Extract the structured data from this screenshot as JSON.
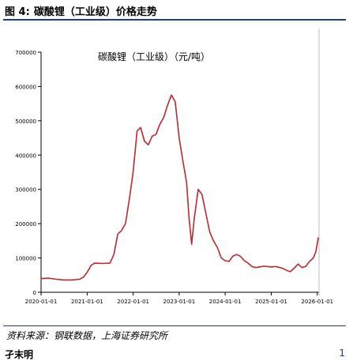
{
  "figure": {
    "label": "图 4:",
    "caption": "碳酸锂（工业级）价格走势"
  },
  "source_note": "资料来源：钢联数据，上海证券研究所",
  "footer_text": "孑末明",
  "footer_mark": "1",
  "colors": {
    "line": "#c0272d",
    "rule": "#1f3f73",
    "axis": "#000000"
  },
  "chart_data": {
    "type": "line",
    "title": "碳酸锂（工业级）（元/吨）",
    "xlabel": "",
    "ylabel": "",
    "x_ticks": [
      "2020-01-01",
      "2021-01-01",
      "2022-01-01",
      "2023-01-01",
      "2024-01-01",
      "2025-01-01",
      "2026-01-01"
    ],
    "y_ticks": [
      "0",
      "100000",
      "200000",
      "300000",
      "400000",
      "500000",
      "600000",
      "700000"
    ],
    "ylim": [
      0,
      700000
    ],
    "xlim": [
      "2020-01-01",
      "2026-01-15"
    ],
    "grid": false,
    "series": [
      {
        "name": "",
        "points": [
          [
            "2020-01-01",
            40000
          ],
          [
            "2020-03-01",
            41000
          ],
          [
            "2020-05-01",
            38000
          ],
          [
            "2020-07-01",
            36000
          ],
          [
            "2020-09-01",
            36000
          ],
          [
            "2020-11-01",
            38000
          ],
          [
            "2020-12-01",
            44000
          ],
          [
            "2021-01-01",
            58000
          ],
          [
            "2021-02-01",
            78000
          ],
          [
            "2021-03-01",
            85000
          ],
          [
            "2021-05-01",
            84000
          ],
          [
            "2021-07-01",
            85000
          ],
          [
            "2021-08-01",
            110000
          ],
          [
            "2021-09-01",
            170000
          ],
          [
            "2021-10-01",
            180000
          ],
          [
            "2021-11-01",
            200000
          ],
          [
            "2021-12-01",
            270000
          ],
          [
            "2022-01-01",
            350000
          ],
          [
            "2022-02-01",
            470000
          ],
          [
            "2022-03-01",
            480000
          ],
          [
            "2022-04-01",
            440000
          ],
          [
            "2022-05-01",
            430000
          ],
          [
            "2022-06-01",
            455000
          ],
          [
            "2022-07-01",
            460000
          ],
          [
            "2022-08-01",
            490000
          ],
          [
            "2022-09-01",
            510000
          ],
          [
            "2022-10-01",
            545000
          ],
          [
            "2022-11-01",
            575000
          ],
          [
            "2022-12-01",
            555000
          ],
          [
            "2023-01-01",
            450000
          ],
          [
            "2023-02-01",
            380000
          ],
          [
            "2023-03-01",
            320000
          ],
          [
            "2023-03-20",
            220000
          ],
          [
            "2023-04-10",
            140000
          ],
          [
            "2023-05-01",
            215000
          ],
          [
            "2023-06-01",
            300000
          ],
          [
            "2023-07-01",
            285000
          ],
          [
            "2023-08-01",
            230000
          ],
          [
            "2023-09-01",
            175000
          ],
          [
            "2023-10-01",
            150000
          ],
          [
            "2023-11-01",
            130000
          ],
          [
            "2023-12-01",
            100000
          ],
          [
            "2024-01-01",
            92000
          ],
          [
            "2024-02-01",
            90000
          ],
          [
            "2024-03-01",
            105000
          ],
          [
            "2024-04-01",
            110000
          ],
          [
            "2024-05-01",
            105000
          ],
          [
            "2024-06-01",
            92000
          ],
          [
            "2024-07-01",
            85000
          ],
          [
            "2024-08-01",
            75000
          ],
          [
            "2024-09-01",
            72000
          ],
          [
            "2024-10-01",
            74000
          ],
          [
            "2024-11-01",
            76000
          ],
          [
            "2024-12-01",
            75000
          ],
          [
            "2025-01-01",
            74000
          ],
          [
            "2025-02-01",
            75000
          ],
          [
            "2025-03-01",
            73000
          ],
          [
            "2025-04-01",
            70000
          ],
          [
            "2025-05-01",
            64000
          ],
          [
            "2025-06-01",
            60000
          ],
          [
            "2025-07-01",
            70000
          ],
          [
            "2025-08-01",
            82000
          ],
          [
            "2025-09-01",
            72000
          ],
          [
            "2025-10-01",
            75000
          ],
          [
            "2025-11-01",
            90000
          ],
          [
            "2025-12-01",
            100000
          ],
          [
            "2025-12-20",
            118000
          ],
          [
            "2026-01-10",
            160000
          ]
        ]
      }
    ]
  }
}
